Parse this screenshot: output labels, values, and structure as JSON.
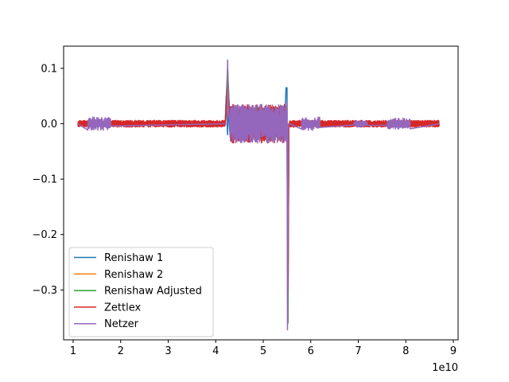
{
  "chart_data": {
    "type": "line",
    "title": "",
    "xlabel": "",
    "ylabel": "",
    "x_offset_label": "1e10",
    "xlim": [
      0.8,
      9.1
    ],
    "ylim": [
      -0.39,
      0.14
    ],
    "x_ticks": [
      1,
      2,
      3,
      4,
      5,
      6,
      7,
      8,
      9
    ],
    "x_tick_labels": [
      "1",
      "2",
      "3",
      "4",
      "5",
      "6",
      "7",
      "8",
      "9"
    ],
    "y_ticks": [
      0.1,
      0.0,
      -0.1,
      -0.2,
      -0.3
    ],
    "y_tick_labels": [
      "0.1",
      "0.0",
      "−0.1",
      "−0.2",
      "−0.3"
    ],
    "grid": false,
    "legend_position": "lower-left",
    "series": [
      {
        "name": "Renishaw 1",
        "color": "#1f77b4",
        "x": [
          1.1,
          4.2,
          4.22,
          4.25,
          4.27,
          4.3,
          4.5,
          4.8,
          5.1,
          5.45,
          5.48,
          5.5,
          5.52,
          5.54,
          5.56,
          8.7
        ],
        "y": [
          0.0,
          0.0,
          0.05,
          -0.02,
          0.03,
          -0.02,
          0.01,
          -0.01,
          0.01,
          0.0,
          0.065,
          0.065,
          -0.35,
          0.0,
          0.0,
          0.0
        ]
      },
      {
        "name": "Renishaw 2",
        "color": "#ff7f0e",
        "x": [
          1.1,
          4.2,
          4.25,
          4.3,
          5.5,
          5.52,
          5.54,
          8.7
        ],
        "y": [
          0.0,
          0.0,
          0.1,
          0.0,
          0.0,
          -0.36,
          0.0,
          0.0
        ],
        "envelope": [
          [
            4.3,
            5.5,
            0.03
          ]
        ]
      },
      {
        "name": "Renishaw Adjusted",
        "color": "#2ca02c",
        "x": [
          1.1,
          4.2,
          4.25,
          4.3,
          5.5,
          5.52,
          5.54,
          8.7
        ],
        "y": [
          0.0,
          0.0,
          0.1,
          0.0,
          0.0,
          -0.36,
          0.0,
          0.0
        ],
        "envelope": [
          [
            4.3,
            5.5,
            0.03
          ]
        ]
      },
      {
        "name": "Zettlex",
        "color": "#d62728",
        "x": [
          1.1,
          4.2,
          4.25,
          4.3,
          5.5,
          5.52,
          5.54,
          8.7
        ],
        "y": [
          0.0,
          0.0,
          0.08,
          0.0,
          0.0,
          -0.3,
          0.0,
          0.0
        ],
        "envelope": [
          [
            1.1,
            4.2,
            0.006
          ],
          [
            4.3,
            5.5,
            0.035
          ],
          [
            5.55,
            8.7,
            0.006
          ]
        ]
      },
      {
        "name": "Netzer",
        "color": "#9467bd",
        "x": [
          1.1,
          4.2,
          4.24,
          4.25,
          4.27,
          4.3,
          5.48,
          5.5,
          5.51,
          5.53,
          5.55,
          8.7
        ],
        "y": [
          0.0,
          0.0,
          0.0,
          0.115,
          0.02,
          0.0,
          0.0,
          0.04,
          -0.372,
          0.0,
          0.0,
          0.0
        ],
        "envelope": [
          [
            4.3,
            5.48,
            0.035
          ]
        ],
        "bursts": [
          [
            1.3,
            1.8,
            0.012
          ],
          [
            5.8,
            6.2,
            0.012
          ],
          [
            6.9,
            7.2,
            0.006
          ],
          [
            7.6,
            8.1,
            0.01
          ]
        ]
      }
    ]
  }
}
